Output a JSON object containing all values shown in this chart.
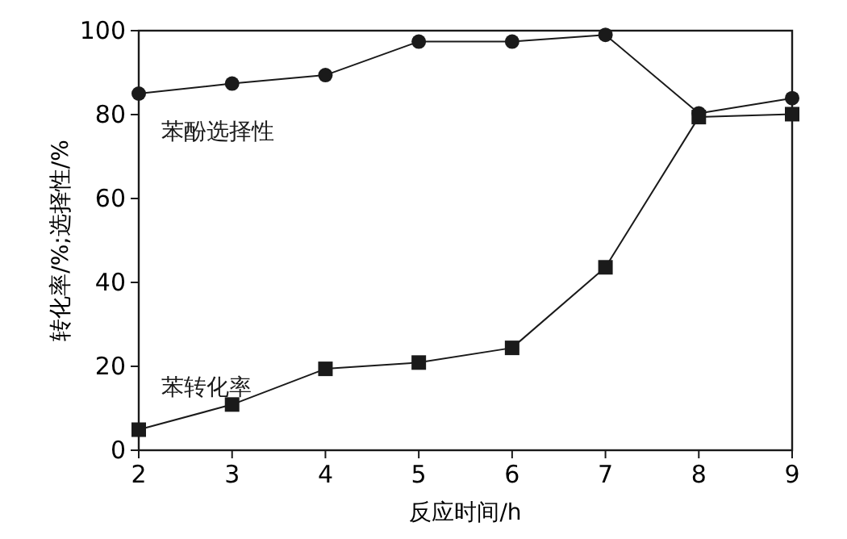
{
  "chart_data": {
    "type": "line",
    "xlabel": "反应时间/h",
    "ylabel": "转化率/%;选择性/%",
    "x": [
      2,
      3,
      4,
      5,
      6,
      7,
      8,
      9
    ],
    "xlim": [
      2,
      9
    ],
    "xticks": [
      2,
      3,
      4,
      5,
      6,
      7,
      8,
      9
    ],
    "ylim": [
      0,
      100
    ],
    "yticks": [
      0,
      20,
      40,
      60,
      80,
      100
    ],
    "grid": false,
    "legend": false,
    "line_style": "solid",
    "series": [
      {
        "name": "苯酚选择性",
        "color": "#1a1a1a",
        "marker": "circle",
        "values": [
          85,
          87.4,
          89.4,
          97.4,
          97.4,
          99,
          80.3,
          83.9
        ]
      },
      {
        "name": "苯转化率",
        "color": "#1a1a1a",
        "marker": "square",
        "values": [
          4.9,
          10.9,
          19.4,
          20.9,
          24.4,
          43.6,
          79.4,
          80.1
        ]
      }
    ]
  }
}
